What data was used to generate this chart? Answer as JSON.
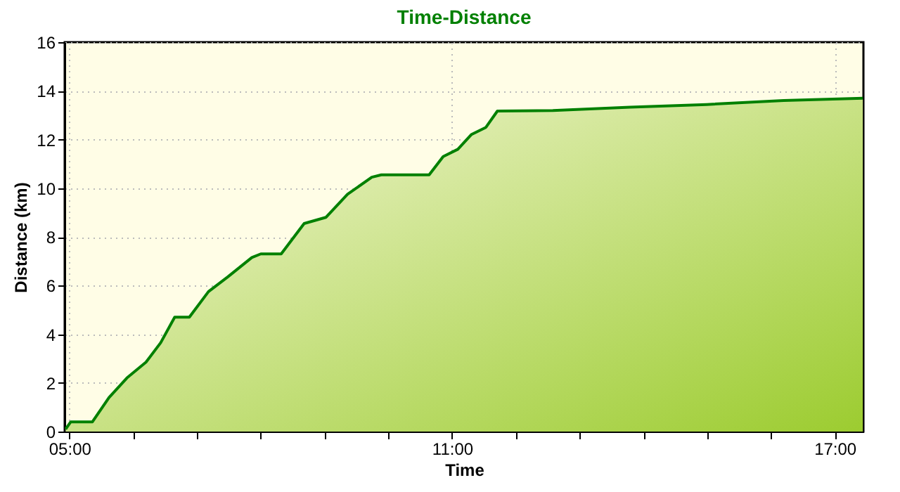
{
  "chart_data": {
    "type": "area",
    "title": "Time-Distance",
    "xlabel": "Time",
    "ylabel": "Distance (km)",
    "x": [
      4.94,
      5.02,
      5.36,
      5.62,
      5.9,
      6.2,
      6.43,
      6.65,
      6.88,
      7.18,
      7.48,
      7.86,
      8.0,
      8.32,
      8.68,
      9.02,
      9.36,
      9.74,
      9.89,
      10.64,
      10.86,
      11.09,
      11.3,
      11.53,
      11.71,
      12.58,
      13.79,
      14.99,
      16.2,
      17.44
    ],
    "series": [
      {
        "color": "#008000",
        "values": [
          0.1,
          0.4,
          0.4,
          1.4,
          2.2,
          2.85,
          3.65,
          4.7,
          4.7,
          5.75,
          6.35,
          7.15,
          7.3,
          7.3,
          8.55,
          8.8,
          9.75,
          10.45,
          10.55,
          10.55,
          11.3,
          11.6,
          12.2,
          12.5,
          13.17,
          13.19,
          13.33,
          13.44,
          13.6,
          13.7
        ]
      }
    ],
    "xlim": [
      4.925,
      17.45
    ],
    "ylim": [
      0,
      16
    ],
    "xticks": [
      {
        "value": 5,
        "label": "05:00"
      },
      {
        "value": 6,
        "label": null
      },
      {
        "value": 7,
        "label": null
      },
      {
        "value": 8,
        "label": null
      },
      {
        "value": 9,
        "label": null
      },
      {
        "value": 10,
        "label": null
      },
      {
        "value": 11,
        "label": "11:00"
      },
      {
        "value": 12,
        "label": null
      },
      {
        "value": 13,
        "label": null
      },
      {
        "value": 14,
        "label": null
      },
      {
        "value": 15,
        "label": null
      },
      {
        "value": 16,
        "label": null
      },
      {
        "value": 17,
        "label": "17:00"
      }
    ],
    "yticks": [
      0,
      2,
      4,
      6,
      8,
      10,
      12,
      14,
      16
    ],
    "grid": true,
    "marker": "none",
    "line_style": "solid"
  }
}
